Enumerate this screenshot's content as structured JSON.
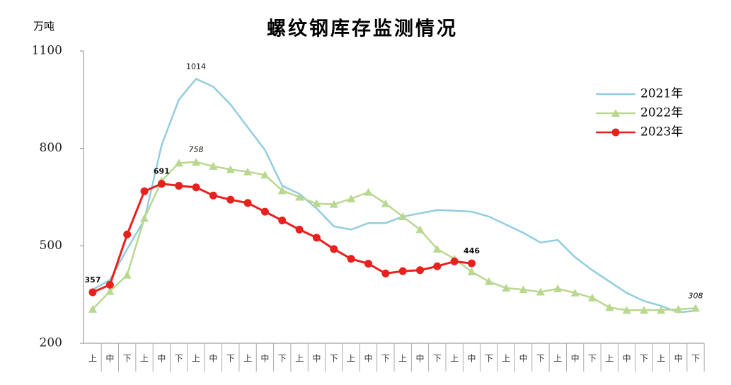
{
  "chart_data": {
    "type": "line",
    "title": "螺纹钢库存监测情况",
    "y_unit": "万吨",
    "categories": [
      "上",
      "中",
      "下",
      "上",
      "中",
      "下",
      "上",
      "中",
      "下",
      "上",
      "中",
      "下",
      "上",
      "中",
      "下",
      "上",
      "中",
      "下",
      "上",
      "中",
      "下",
      "上",
      "中",
      "下",
      "上",
      "中",
      "下",
      "上",
      "中",
      "下",
      "上",
      "中",
      "下",
      "上",
      "中",
      "下"
    ],
    "ylim": [
      200,
      1100
    ],
    "yticks": [
      200,
      500,
      800,
      1100
    ],
    "legend": "upper right",
    "series": [
      {
        "name": "2021年",
        "color": "#92cddf",
        "marker": "none",
        "values": [
          365,
          395,
          490,
          580,
          810,
          950,
          1014,
          990,
          935,
          865,
          795,
          685,
          660,
          615,
          560,
          550,
          570,
          570,
          590,
          600,
          610,
          608,
          605,
          590,
          565,
          540,
          510,
          518,
          465,
          425,
          390,
          355,
          330,
          315,
          295,
          300
        ],
        "value_labels": [
          null,
          null,
          null,
          null,
          null,
          null,
          "1014",
          null,
          null,
          null,
          null,
          null,
          null,
          null,
          null,
          null,
          null,
          null,
          null,
          null,
          null,
          null,
          null,
          null,
          null,
          null,
          null,
          null,
          null,
          null,
          null,
          null,
          null,
          null,
          null,
          null
        ]
      },
      {
        "name": "2022年",
        "color": "#b8d88f",
        "marker": "triangle",
        "values": [
          305,
          360,
          410,
          585,
          700,
          755,
          758,
          745,
          735,
          728,
          718,
          670,
          650,
          630,
          628,
          645,
          665,
          630,
          590,
          550,
          490,
          460,
          420,
          390,
          370,
          365,
          358,
          368,
          355,
          340,
          310,
          302,
          302,
          302,
          305,
          308
        ],
        "value_labels": [
          null,
          null,
          null,
          null,
          null,
          null,
          "758",
          null,
          null,
          null,
          null,
          null,
          null,
          null,
          null,
          null,
          null,
          null,
          null,
          null,
          null,
          null,
          null,
          null,
          null,
          null,
          null,
          null,
          null,
          null,
          null,
          null,
          null,
          null,
          null,
          "308"
        ]
      },
      {
        "name": "2023年",
        "color": "#e8201e",
        "marker": "circle",
        "values": [
          357,
          380,
          535,
          668,
          691,
          685,
          680,
          655,
          642,
          632,
          605,
          578,
          550,
          525,
          490,
          460,
          445,
          415,
          422,
          425,
          437,
          452,
          446,
          null,
          null,
          null,
          null,
          null,
          null,
          null,
          null,
          null,
          null,
          null,
          null,
          null
        ],
        "value_labels": [
          "357",
          null,
          null,
          null,
          "691",
          null,
          null,
          null,
          null,
          null,
          null,
          null,
          null,
          null,
          null,
          null,
          null,
          null,
          null,
          null,
          null,
          null,
          "446",
          null,
          null,
          null,
          null,
          null,
          null,
          null,
          null,
          null,
          null,
          null,
          null,
          null
        ]
      }
    ]
  }
}
